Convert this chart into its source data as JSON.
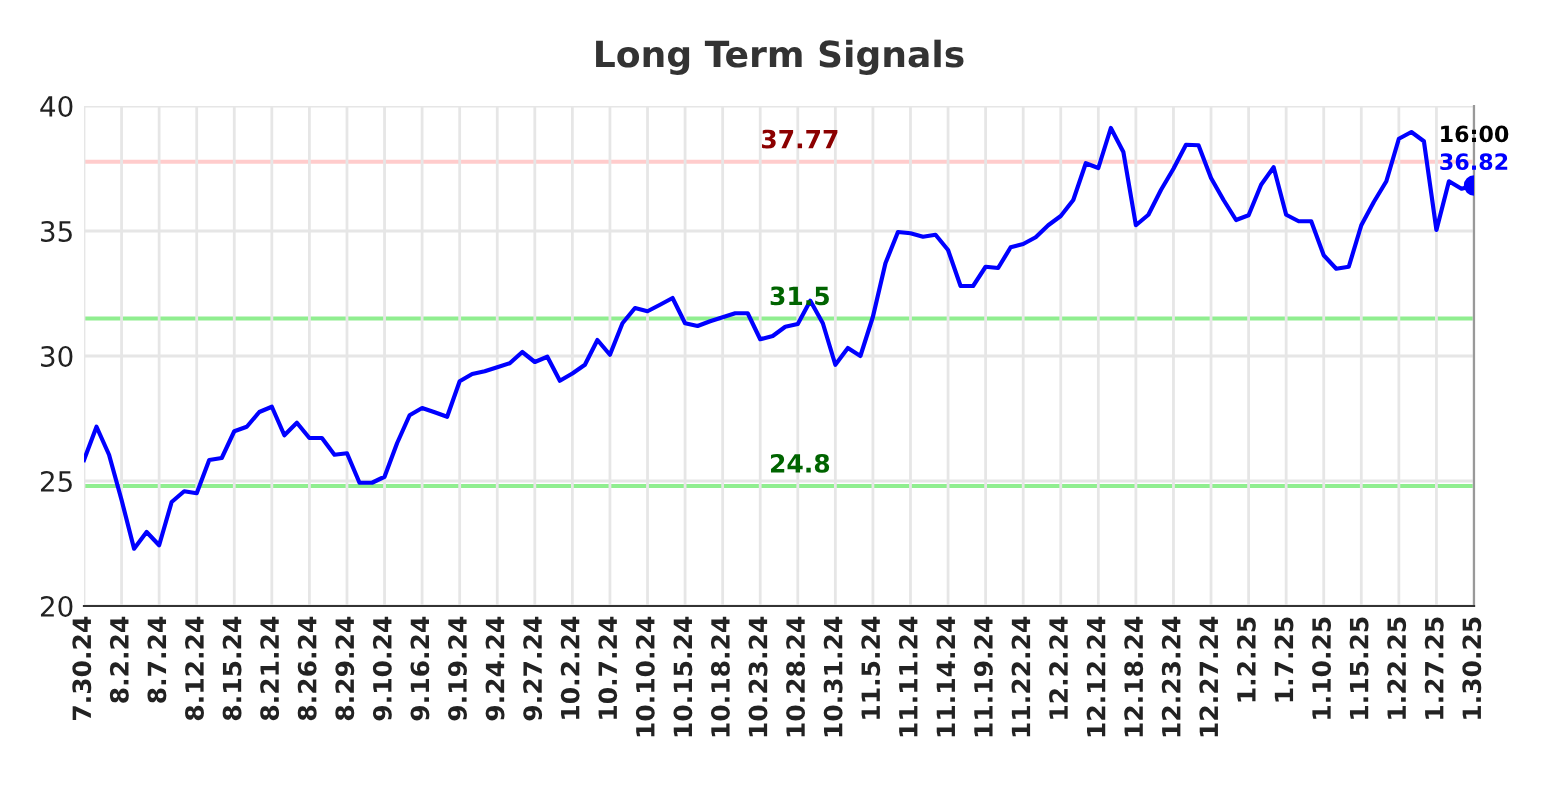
{
  "chart_data": {
    "type": "line",
    "title": "Long Term Signals",
    "categories": [
      "7.30.24",
      null,
      null,
      "8.2.24",
      null,
      null,
      "8.7.24",
      null,
      null,
      "8.12.24",
      null,
      null,
      "8.15.24",
      null,
      null,
      "8.21.24",
      null,
      null,
      "8.26.24",
      null,
      null,
      "8.29.24",
      null,
      null,
      "9.10.24",
      null,
      null,
      "9.16.24",
      null,
      null,
      "9.19.24",
      null,
      null,
      "9.24.24",
      null,
      null,
      "9.27.24",
      null,
      null,
      "10.2.24",
      null,
      null,
      "10.7.24",
      null,
      null,
      "10.10.24",
      null,
      null,
      "10.15.24",
      null,
      null,
      "10.18.24",
      null,
      null,
      "10.23.24",
      null,
      null,
      "10.28.24",
      null,
      null,
      "10.31.24",
      null,
      null,
      "11.5.24",
      null,
      null,
      "11.11.24",
      null,
      null,
      "11.14.24",
      null,
      null,
      "11.19.24",
      null,
      null,
      "11.22.24",
      null,
      null,
      "12.2.24",
      null,
      null,
      "12.12.24",
      null,
      null,
      "12.18.24",
      null,
      null,
      "12.23.24",
      null,
      null,
      "12.27.24",
      null,
      null,
      "1.2.25",
      null,
      null,
      "1.7.25",
      null,
      null,
      "1.10.25",
      null,
      null,
      "1.15.25",
      null,
      null,
      "1.22.25",
      null,
      null,
      "1.27.25",
      null,
      null,
      "1.30.25"
    ],
    "series": [
      {
        "color": "#0000ff",
        "values": [
          25.84,
          27.17,
          26.05,
          24.24,
          22.29,
          22.96,
          22.43,
          24.16,
          24.59,
          24.51,
          25.84,
          25.92,
          26.99,
          27.17,
          27.76,
          27.97,
          26.83,
          27.33,
          26.72,
          26.72,
          26.05,
          26.11,
          24.93,
          24.93,
          25.17,
          26.51,
          27.63,
          27.92,
          27.75,
          27.57,
          28.99,
          29.28,
          29.39,
          29.55,
          29.71,
          30.16,
          29.76,
          29.97,
          29.01,
          29.3,
          29.65,
          30.64,
          30.05,
          31.31,
          31.92,
          31.79,
          32.05,
          32.32,
          31.31,
          31.2,
          31.39,
          31.55,
          31.71,
          31.71,
          30.67,
          30.8,
          31.17,
          31.28,
          32.21,
          31.31,
          29.65,
          30.32,
          30.0,
          31.57,
          33.71,
          34.96,
          34.91,
          34.77,
          34.85,
          34.24,
          32.8,
          32.8,
          33.57,
          33.52,
          34.35,
          34.48,
          34.75,
          35.23,
          35.6,
          36.24,
          37.71,
          37.52,
          39.12,
          38.16,
          35.23,
          35.65,
          36.64,
          37.49,
          38.45,
          38.43,
          37.12,
          36.24,
          35.44,
          35.63,
          36.85,
          37.55,
          35.65,
          35.39,
          35.39,
          34.03,
          33.49,
          33.57,
          35.23,
          36.16,
          36.99,
          38.69,
          38.96,
          38.59,
          35.04,
          36.99,
          36.69,
          36.82
        ]
      },
      {
        "type": "scatter",
        "color": "#0000ff",
        "x": [
          "1.30.25"
        ],
        "values": [
          36.82
        ],
        "marker": "circle"
      }
    ],
    "ylim": [
      20,
      40
    ],
    "yticks": [
      20,
      25,
      30,
      35,
      40
    ],
    "grid": true,
    "ref_lines": [
      {
        "axis": "y",
        "value": 37.77,
        "label": "37.77",
        "color": "#ffcccc"
      },
      {
        "axis": "y",
        "value": 31.5,
        "label": "31.5",
        "color": "#90ee90"
      },
      {
        "axis": "y",
        "value": 24.8,
        "label": "24.8",
        "color": "#90ee90"
      }
    ],
    "annotations": [
      {
        "text": "16:00",
        "x": "1.30.25",
        "y": 36.82
      },
      {
        "text": "36.82",
        "x": "1.30.25",
        "y": 36.82
      }
    ]
  }
}
